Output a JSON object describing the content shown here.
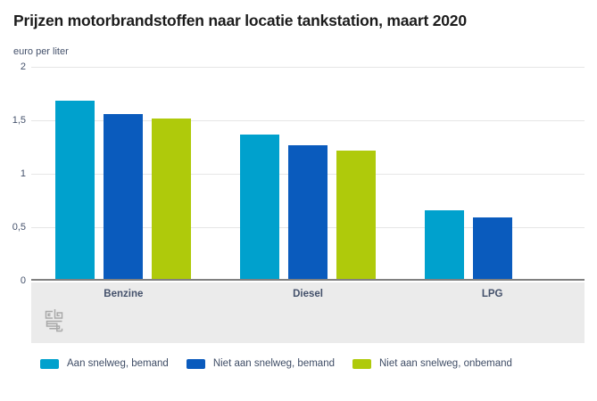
{
  "page": {
    "background": "#ffffff",
    "text_color": "#44516b"
  },
  "chart_data": {
    "type": "bar",
    "title": "Prijzen motorbrandstoffen naar locatie tankstation, maart 2020",
    "ylabel": "euro per liter",
    "xlabel": "",
    "categories": [
      "Benzine",
      "Diesel",
      "LPG"
    ],
    "series": [
      {
        "name": "Aan snelweg, bemand",
        "color": "#00a1cd",
        "values": [
          1.68,
          1.37,
          0.66
        ]
      },
      {
        "name": "Niet aan snelweg, bemand",
        "color": "#0a5bbd",
        "values": [
          1.56,
          1.27,
          0.59
        ]
      },
      {
        "name": "Niet aan snelweg, onbemand",
        "color": "#afca0b",
        "values": [
          1.52,
          1.22,
          null
        ]
      }
    ],
    "ylim": [
      0,
      2
    ],
    "ytick_labels": [
      "2",
      "1,5",
      "1",
      "0,5",
      "0"
    ],
    "grid": true,
    "legend_position": "bottom",
    "axis_line_color": "#808080",
    "gridline_color": "#e6e6e6",
    "band_color": "#ebebeb",
    "footer_logo_icon": "cbs-logo"
  }
}
